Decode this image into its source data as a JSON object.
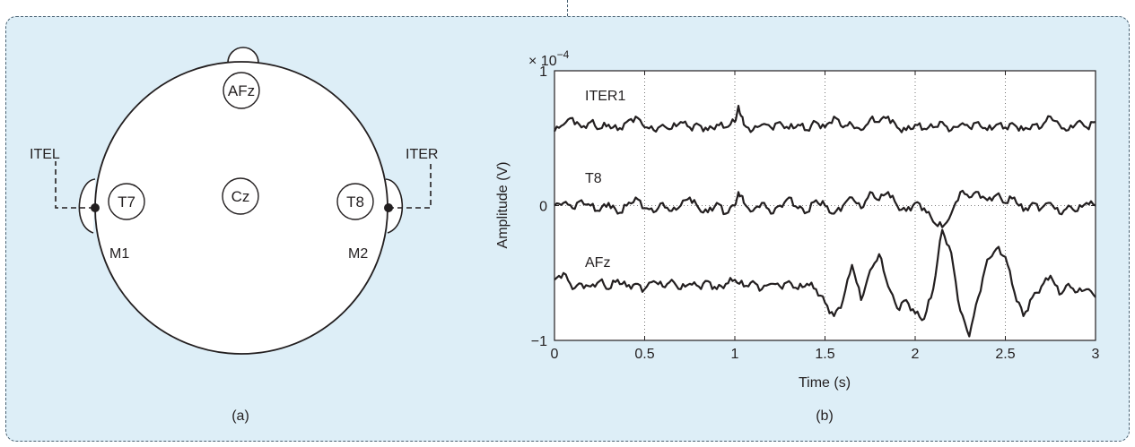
{
  "head_diagram": {
    "caption": "(a)",
    "electrodes": [
      {
        "label": "AFz",
        "id": "afz"
      },
      {
        "label": "T7",
        "id": "t7"
      },
      {
        "label": "Cz",
        "id": "cz"
      },
      {
        "label": "T8",
        "id": "t8"
      }
    ],
    "mastoid_left": "M1",
    "mastoid_right": "M2",
    "ear_left_label": "ITEL",
    "ear_right_label": "ITER"
  },
  "chart_caption": "(b)",
  "chart_data": {
    "type": "line",
    "title": "",
    "xlabel": "Time (s)",
    "ylabel": "Amplitude (V)",
    "y_multiplier_base": "× 10",
    "y_multiplier_exp": "−4",
    "xlim": [
      0,
      3
    ],
    "ylim": [
      -1,
      1
    ],
    "grid": "dotted-vertical",
    "xticks": [
      "0",
      "0.5",
      "1",
      "1.5",
      "2",
      "2.5",
      "3"
    ],
    "yticks": [
      "1",
      "0",
      "−1"
    ],
    "series": [
      {
        "name": "ITER1",
        "x": [
          0.0,
          0.05,
          0.1,
          0.15,
          0.2,
          0.25,
          0.3,
          0.35,
          0.4,
          0.45,
          0.5,
          0.55,
          0.6,
          0.65,
          0.7,
          0.75,
          0.8,
          0.85,
          0.9,
          0.95,
          1.0,
          1.02,
          1.05,
          1.1,
          1.15,
          1.2,
          1.25,
          1.3,
          1.35,
          1.4,
          1.45,
          1.5,
          1.55,
          1.6,
          1.65,
          1.7,
          1.75,
          1.8,
          1.85,
          1.9,
          1.95,
          2.0,
          2.05,
          2.1,
          2.15,
          2.2,
          2.25,
          2.3,
          2.35,
          2.4,
          2.45,
          2.5,
          2.55,
          2.6,
          2.65,
          2.7,
          2.75,
          2.8,
          2.85,
          2.9,
          2.95,
          3.0
        ],
        "values": [
          0.55,
          0.6,
          0.65,
          0.58,
          0.62,
          0.57,
          0.6,
          0.56,
          0.62,
          0.66,
          0.58,
          0.56,
          0.6,
          0.57,
          0.62,
          0.58,
          0.6,
          0.56,
          0.6,
          0.58,
          0.62,
          0.74,
          0.6,
          0.56,
          0.6,
          0.58,
          0.62,
          0.57,
          0.6,
          0.56,
          0.62,
          0.58,
          0.66,
          0.58,
          0.6,
          0.56,
          0.64,
          0.62,
          0.66,
          0.58,
          0.56,
          0.6,
          0.57,
          0.58,
          0.62,
          0.56,
          0.6,
          0.58,
          0.62,
          0.56,
          0.6,
          0.58,
          0.6,
          0.56,
          0.6,
          0.58,
          0.66,
          0.6,
          0.56,
          0.62,
          0.58,
          0.62
        ]
      },
      {
        "name": "T8",
        "x": [
          0.0,
          0.05,
          0.1,
          0.15,
          0.2,
          0.25,
          0.3,
          0.35,
          0.4,
          0.45,
          0.5,
          0.55,
          0.6,
          0.65,
          0.7,
          0.75,
          0.8,
          0.85,
          0.9,
          0.95,
          1.0,
          1.02,
          1.05,
          1.1,
          1.15,
          1.2,
          1.25,
          1.3,
          1.35,
          1.4,
          1.45,
          1.5,
          1.55,
          1.6,
          1.65,
          1.7,
          1.75,
          1.8,
          1.85,
          1.9,
          1.95,
          2.0,
          2.05,
          2.1,
          2.15,
          2.2,
          2.25,
          2.3,
          2.35,
          2.4,
          2.45,
          2.5,
          2.55,
          2.6,
          2.65,
          2.7,
          2.75,
          2.8,
          2.85,
          2.9,
          2.95,
          3.0
        ],
        "values": [
          0.0,
          0.02,
          -0.02,
          0.04,
          0.0,
          -0.04,
          0.02,
          -0.06,
          0.0,
          0.06,
          -0.02,
          -0.05,
          0.02,
          -0.04,
          0.0,
          0.06,
          -0.02,
          -0.05,
          0.02,
          -0.06,
          0.0,
          0.1,
          0.02,
          -0.04,
          0.02,
          -0.06,
          0.0,
          0.06,
          -0.02,
          -0.05,
          0.04,
          0.0,
          -0.06,
          0.0,
          0.06,
          -0.02,
          0.1,
          0.04,
          0.1,
          0.0,
          -0.04,
          0.02,
          -0.02,
          -0.12,
          -0.16,
          -0.06,
          0.1,
          0.06,
          0.1,
          0.04,
          0.08,
          0.02,
          0.06,
          -0.04,
          0.02,
          -0.02,
          0.02,
          -0.06,
          0.0,
          -0.04,
          0.02,
          0.0
        ]
      },
      {
        "name": "AFz",
        "x": [
          0.0,
          0.05,
          0.1,
          0.15,
          0.2,
          0.25,
          0.3,
          0.35,
          0.4,
          0.45,
          0.5,
          0.55,
          0.6,
          0.65,
          0.7,
          0.75,
          0.8,
          0.85,
          0.9,
          0.95,
          1.0,
          1.05,
          1.1,
          1.15,
          1.2,
          1.25,
          1.3,
          1.35,
          1.4,
          1.45,
          1.5,
          1.55,
          1.6,
          1.65,
          1.7,
          1.75,
          1.8,
          1.85,
          1.9,
          1.95,
          2.0,
          2.05,
          2.1,
          2.15,
          2.2,
          2.25,
          2.3,
          2.35,
          2.4,
          2.45,
          2.5,
          2.55,
          2.6,
          2.65,
          2.7,
          2.75,
          2.8,
          2.85,
          2.9,
          2.95,
          3.0
        ],
        "values": [
          -0.55,
          -0.5,
          -0.62,
          -0.58,
          -0.6,
          -0.56,
          -0.62,
          -0.55,
          -0.6,
          -0.58,
          -0.62,
          -0.56,
          -0.6,
          -0.55,
          -0.62,
          -0.58,
          -0.6,
          -0.56,
          -0.62,
          -0.58,
          -0.55,
          -0.6,
          -0.56,
          -0.62,
          -0.58,
          -0.6,
          -0.56,
          -0.62,
          -0.58,
          -0.62,
          -0.72,
          -0.82,
          -0.7,
          -0.44,
          -0.7,
          -0.48,
          -0.36,
          -0.6,
          -0.76,
          -0.7,
          -0.8,
          -0.84,
          -0.62,
          -0.18,
          -0.35,
          -0.78,
          -0.97,
          -0.68,
          -0.4,
          -0.32,
          -0.38,
          -0.64,
          -0.82,
          -0.68,
          -0.6,
          -0.52,
          -0.66,
          -0.58,
          -0.64,
          -0.62,
          -0.68
        ]
      }
    ]
  }
}
